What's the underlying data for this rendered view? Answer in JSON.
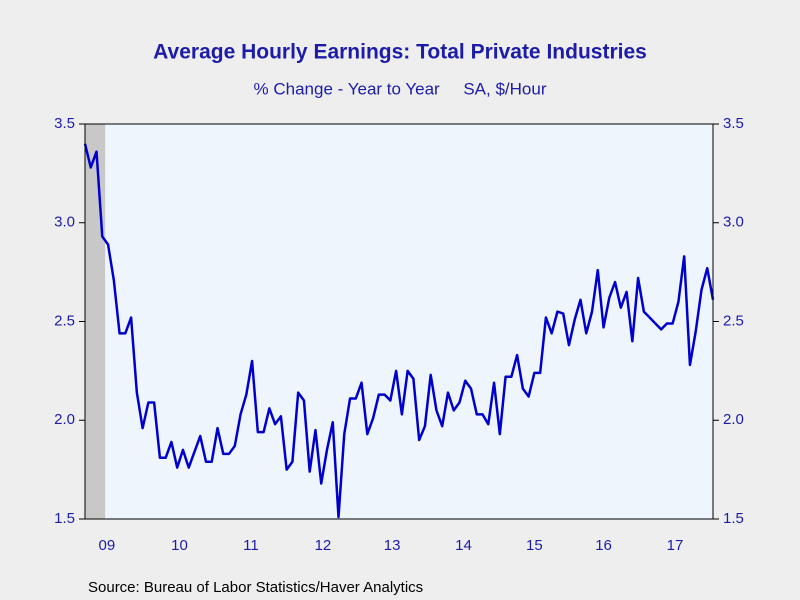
{
  "chart_data": {
    "type": "line",
    "title": "Average Hourly Earnings: Total Private Industries",
    "subtitle": "% Change - Year to Year     SA, $/Hour",
    "source": "Source:  Bureau of Labor Statistics/Haver Analytics",
    "series": [
      {
        "name": "Average Hourly Earnings",
        "color": "#0000cc",
        "values": [
          3.4,
          3.28,
          3.36,
          2.93,
          2.89,
          2.71,
          2.44,
          2.44,
          2.52,
          2.14,
          1.96,
          2.09,
          2.09,
          1.81,
          1.81,
          1.89,
          1.76,
          1.85,
          1.76,
          1.84,
          1.92,
          1.79,
          1.79,
          1.96,
          1.83,
          1.83,
          1.87,
          2.03,
          2.13,
          2.3,
          1.94,
          1.94,
          2.06,
          1.98,
          2.02,
          1.75,
          1.79,
          2.14,
          2.1,
          1.74,
          1.95,
          1.68,
          1.85,
          1.99,
          1.51,
          1.93,
          2.11,
          2.11,
          2.19,
          1.93,
          2.01,
          2.13,
          2.13,
          2.1,
          2.25,
          2.03,
          2.25,
          2.21,
          1.9,
          1.97,
          2.23,
          2.05,
          1.97,
          2.14,
          2.05,
          2.09,
          2.2,
          2.16,
          2.03,
          2.03,
          1.98,
          2.19,
          1.93,
          2.22,
          2.22,
          2.33,
          2.16,
          2.12,
          2.24,
          2.24,
          2.52,
          2.44,
          2.55,
          2.54,
          2.38,
          2.51,
          2.61,
          2.44,
          2.55,
          2.76,
          2.47,
          2.62,
          2.7,
          2.57,
          2.65,
          2.4,
          2.72,
          2.55,
          2.52,
          2.49,
          2.46,
          2.49,
          2.49,
          2.6,
          2.83,
          2.28,
          2.45,
          2.66,
          2.77,
          2.61
        ]
      }
    ],
    "xlim": [
      0,
      109
    ],
    "xticks": [
      {
        "value": 3.8,
        "label": "09"
      },
      {
        "value": 16.4,
        "label": "10"
      },
      {
        "value": 28.8,
        "label": "11"
      },
      {
        "value": 41.3,
        "label": "12"
      },
      {
        "value": 53.3,
        "label": "13"
      },
      {
        "value": 65.7,
        "label": "14"
      },
      {
        "value": 78.0,
        "label": "15"
      },
      {
        "value": 90.0,
        "label": "16"
      },
      {
        "value": 102.4,
        "label": "17"
      }
    ],
    "shaded_band": [
      0,
      3.5
    ],
    "ylim": [
      1.5,
      3.5
    ],
    "yticks": [
      {
        "value": 1.5,
        "label": "1.5"
      },
      {
        "value": 2.0,
        "label": "2.0"
      },
      {
        "value": 2.5,
        "label": "2.5"
      },
      {
        "value": 3.0,
        "label": "3.0"
      },
      {
        "value": 3.5,
        "label": "3.5"
      }
    ],
    "y2lim": [
      1.5,
      3.5
    ],
    "y2ticks": [
      {
        "value": 1.5,
        "label": "1.5"
      },
      {
        "value": 2.0,
        "label": "2.0"
      },
      {
        "value": 2.5,
        "label": "2.5"
      },
      {
        "value": 3.0,
        "label": "3.0"
      },
      {
        "value": 3.5,
        "label": "3.5"
      }
    ]
  }
}
